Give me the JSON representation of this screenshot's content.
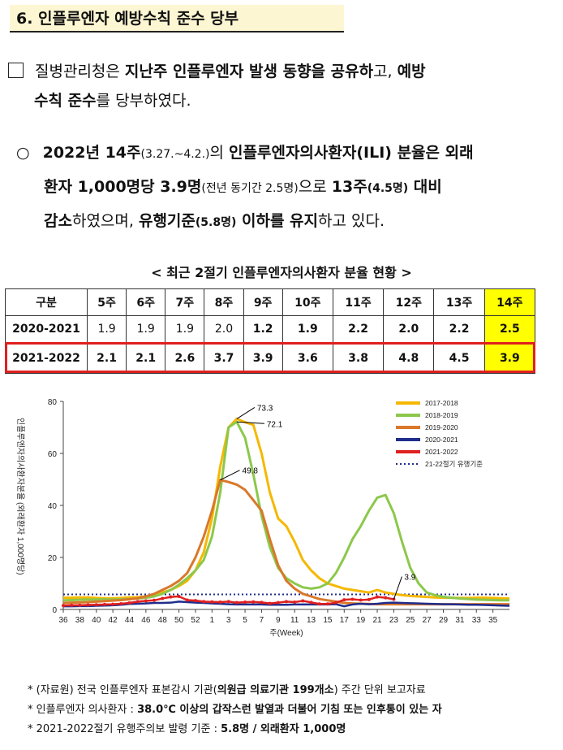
{
  "section": {
    "title": "6. 인플루엔자 예방수칙 준수 당부"
  },
  "para1": {
    "bullet": "□",
    "t1": "질병관리청은 ",
    "t2": "지난주 인플루엔자 발생 동향을 공유하",
    "t3": "고, ",
    "t4": "예방",
    "t5": "수칙 준수",
    "t6": "를 당부하였다."
  },
  "para2": {
    "bullet": "○",
    "t1": "2022년 14주",
    "t2": "(3.27.~4.2.)",
    "t3": "의 ",
    "t4": "인플루엔자의사환자(ILI) 분율은 외래",
    "t5": "환자 1,000명당 3.9명",
    "t6": "(전년 동기간 2.5명)",
    "t7": "으로 ",
    "t8": "13주",
    "t9": "(4.5명)",
    "t10": " 대비",
    "t11": "감소",
    "t12": "하였으며, ",
    "t13": "유행기준",
    "t14": "(5.8명)",
    "t15": " 이하를 유지",
    "t16": "하고 있다."
  },
  "table": {
    "title": "< 최근 2절기 인플루엔자의사환자 분율 현황 >",
    "headers": [
      "구분",
      "5주",
      "6주",
      "7주",
      "8주",
      "9주",
      "10주",
      "11주",
      "12주",
      "13주",
      "14주"
    ],
    "rows": [
      [
        "2020-2021",
        "1.9",
        "1.9",
        "1.9",
        "2.0",
        "1.2",
        "1.9",
        "2.2",
        "2.0",
        "2.2",
        "2.5"
      ],
      [
        "2021-2022",
        "2.1",
        "2.1",
        "2.6",
        "3.7",
        "3.9",
        "3.6",
        "3.8",
        "4.8",
        "4.5",
        "3.9"
      ]
    ]
  },
  "chart_data": {
    "type": "line",
    "xlabel": "주(Week)",
    "ylabel": "인플루엔자의사환자분율 (외래환자 1,000명당)",
    "ylim": [
      0,
      80
    ],
    "yticks": [
      0,
      20,
      40,
      60,
      80
    ],
    "x_tick_labels": [
      "36",
      "38",
      "40",
      "42",
      "44",
      "46",
      "48",
      "50",
      "52",
      "1",
      "3",
      "5",
      "7",
      "9",
      "11",
      "13",
      "15",
      "17",
      "19",
      "21",
      "23",
      "25",
      "27",
      "29",
      "31",
      "33",
      "35"
    ],
    "annotations": [
      "73.3",
      "72.1",
      "49.8",
      "3.9"
    ],
    "threshold": {
      "name": "21-22절기 유행기준",
      "value": 5.8
    },
    "series": [
      {
        "name": "2017-2018",
        "color": "#f5b800",
        "values": [
          4.5,
          4.5,
          4.6,
          4.6,
          4.4,
          4.3,
          4.3,
          4.4,
          4.6,
          4.7,
          5.0,
          5.5,
          6.5,
          7.5,
          9,
          11,
          15,
          22,
          35,
          55,
          70,
          73.3,
          72,
          71,
          60,
          45,
          35,
          32,
          26,
          19,
          15,
          12,
          10,
          9,
          8,
          7.5,
          7,
          6.5,
          7.5,
          6.5,
          6,
          5.5,
          5.2,
          5,
          4.8,
          4.6,
          4.5,
          4.5,
          4.4,
          4.4,
          4.5,
          4.5,
          4.4,
          4.3,
          4.2
        ]
      },
      {
        "name": "2018-2019",
        "color": "#8cc84b",
        "values": [
          3.5,
          3.6,
          3.7,
          3.8,
          3.8,
          3.9,
          3.8,
          3.9,
          4.0,
          4.2,
          4.5,
          5.0,
          6,
          7.5,
          9.5,
          12,
          15,
          19,
          28,
          45,
          70,
          72.1,
          66,
          52,
          36,
          24,
          16,
          12,
          10,
          8.5,
          8,
          8.5,
          10,
          14,
          20,
          27,
          32,
          38,
          43,
          44,
          37,
          26,
          16,
          10,
          6.5,
          5.5,
          4.8,
          4.5,
          4.2,
          4.0,
          3.8,
          3.7,
          3.6,
          3.5,
          3.5
        ]
      },
      {
        "name": "2019-2020",
        "color": "#d9782a",
        "values": [
          2.5,
          2.6,
          2.7,
          2.8,
          3.0,
          3.2,
          3.4,
          3.6,
          3.9,
          4.3,
          5,
          6,
          7.5,
          9,
          11,
          14,
          20,
          28,
          38,
          49.8,
          49,
          48,
          46,
          42,
          38,
          27,
          17,
          11,
          8,
          6,
          5,
          4,
          3.5,
          3,
          2.5,
          2.3,
          2.2,
          2.1,
          2.0,
          2.0,
          2.0,
          2.0,
          2.0,
          2.0,
          2.0,
          2.0,
          2.0,
          2.0,
          2.0,
          2.0,
          2.0,
          2.0,
          2.0,
          2.0,
          2.0
        ]
      },
      {
        "name": "2020-2021",
        "color": "#1f2d8c",
        "values": [
          1.2,
          1.2,
          1.3,
          1.3,
          1.4,
          1.5,
          1.6,
          1.8,
          2.1,
          2.2,
          2.3,
          2.5,
          2.5,
          2.6,
          3.0,
          2.8,
          2.6,
          2.5,
          2.3,
          2.2,
          2.0,
          1.9,
          1.9,
          1.9,
          1.9,
          1.8,
          1.8,
          1.8,
          1.9,
          1.9,
          1.9,
          1.9,
          1.9,
          2.0,
          1.2,
          1.9,
          2.2,
          2.0,
          2.2,
          2.5,
          2.6,
          2.5,
          2.4,
          2.3,
          2.2,
          2.1,
          2.0,
          2.0,
          1.9,
          1.8,
          1.8,
          1.7,
          1.6,
          1.5,
          1.4
        ]
      },
      {
        "name": "2021-2022",
        "color": "#e02020",
        "values": [
          1.5,
          1.6,
          1.6,
          1.7,
          1.8,
          1.9,
          2.0,
          2.2,
          2.5,
          3.0,
          3.3,
          3.5,
          4.2,
          4.8,
          5.0,
          3.6,
          3.4,
          3.0,
          2.9,
          2.8,
          3.0,
          2.6,
          2.8,
          2.9,
          2.7,
          2.3,
          2.6,
          3.0,
          2.8,
          3.3,
          2.7,
          2.1,
          2.1,
          2.6,
          3.7,
          3.9,
          3.6,
          3.8,
          4.8,
          4.5,
          3.9
        ]
      }
    ]
  },
  "notes": {
    "n1a": "* (자료원) 전국 인플루엔자 표본감시 기관(",
    "n1b": "의원급 의료기관 199개소",
    "n1c": ") 주간 단위 보고자료",
    "n2a": "* 인플루엔자 의사환자 : ",
    "n2b": "38.0℃ 이상의 갑작스런 발열과 더불어 기침 또는 인후통이 있는 자",
    "n3a": "* 2021-2022절기 유행주의보 발령 기준 : ",
    "n3b": "5.8명 / 외래환자 1,000명"
  }
}
